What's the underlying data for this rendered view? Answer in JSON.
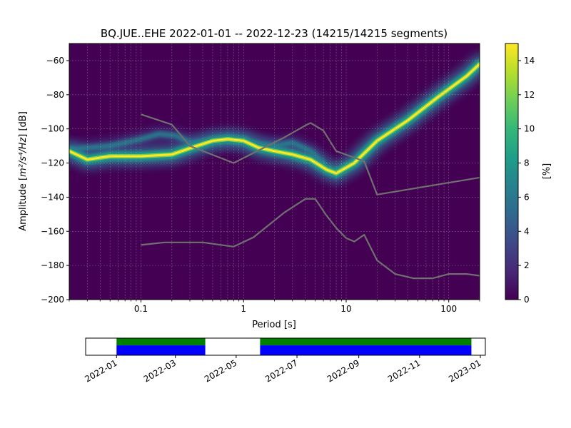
{
  "chart_data": [
    {
      "type": "heatmap",
      "title": "BQ.JUE..EHE   2022-01-01 -- 2022-12-23  (14215/14215 segments)",
      "xlabel": "Period [s]",
      "ylabel_main": "Amplitude [",
      "ylabel_unit": "m²/s⁴/Hz",
      "ylabel_tail": "] [dB]",
      "x_scale": "log",
      "xlim": [
        0.02,
        200
      ],
      "ylim": [
        -200,
        -50
      ],
      "x_ticks": [
        {
          "value": 0.1,
          "label": "0.1"
        },
        {
          "value": 1,
          "label": "1"
        },
        {
          "value": 10,
          "label": "10"
        },
        {
          "value": 100,
          "label": "100"
        }
      ],
      "y_ticks": [
        -60,
        -80,
        -100,
        -120,
        -140,
        -160,
        -180,
        -200
      ],
      "grid": true,
      "colorbar": {
        "label": "[%]",
        "min": 0,
        "max": 15,
        "ticks": [
          0,
          2,
          4,
          6,
          8,
          10,
          12,
          14
        ],
        "colormap": [
          "#440154",
          "#482878",
          "#3e4989",
          "#31688e",
          "#26828e",
          "#1f9e89",
          "#35b779",
          "#6ece58",
          "#b5de2b",
          "#fde725"
        ]
      },
      "colors": {
        "background": "#440154",
        "model_lines": "#707070",
        "grid": "#aaaaaa"
      },
      "modal_curve": [
        [
          0.02,
          -113
        ],
        [
          0.03,
          -118
        ],
        [
          0.05,
          -116
        ],
        [
          0.1,
          -116
        ],
        [
          0.2,
          -115
        ],
        [
          0.35,
          -110
        ],
        [
          0.5,
          -107
        ],
        [
          0.7,
          -106
        ],
        [
          1.0,
          -107
        ],
        [
          1.4,
          -111
        ],
        [
          2.0,
          -113
        ],
        [
          3.0,
          -115
        ],
        [
          4.5,
          -118
        ],
        [
          6.5,
          -124
        ],
        [
          8.0,
          -126
        ],
        [
          12,
          -120
        ],
        [
          20,
          -107
        ],
        [
          40,
          -95
        ],
        [
          80,
          -81
        ],
        [
          150,
          -69
        ],
        [
          200,
          -62
        ]
      ],
      "secondary_curve": [
        [
          0.02,
          -112
        ],
        [
          0.05,
          -110
        ],
        [
          0.1,
          -106
        ],
        [
          0.15,
          -103
        ],
        [
          0.22,
          -104
        ],
        [
          0.3,
          -108
        ],
        [
          0.5,
          -107
        ],
        [
          0.8,
          -106
        ],
        [
          1.2,
          -108
        ],
        [
          2.0,
          -110
        ],
        [
          3.0,
          -108
        ],
        [
          4.5,
          -113
        ],
        [
          6.0,
          -120
        ]
      ],
      "series": [
        {
          "name": "",
          "x": [
            0.1,
            0.2,
            0.3,
            0.8,
            2.5,
            4.0,
            4.5,
            6.0,
            8.0,
            15.0,
            20.0,
            200.0
          ],
          "y": [
            -91.5,
            -97.5,
            -110,
            -120,
            -105,
            -98,
            -96.5,
            -101,
            -113,
            -119,
            -138.5,
            -128.5
          ]
        },
        {
          "name": "",
          "x": [
            0.1,
            0.17,
            0.4,
            0.8,
            1.25,
            2.5,
            4.0,
            5.0,
            6.3,
            8.0,
            10.0,
            12.0,
            15.0,
            20.0,
            30.0,
            45.0,
            70.0,
            100.0,
            150.0,
            200.0
          ],
          "y": [
            -168,
            -166.5,
            -166.5,
            -169,
            -163.5,
            -149,
            -141,
            -141,
            -150,
            -158,
            -164,
            -166,
            -162,
            -177,
            -185,
            -187.5,
            -187.5,
            -185,
            -185,
            -186
          ]
        }
      ]
    },
    {
      "type": "timeline",
      "xlim": [
        "2021-12-01",
        "2023-01-06"
      ],
      "x_ticks": [
        "2022-01",
        "2022-03",
        "2022-05",
        "2022-07",
        "2022-09",
        "2022-11",
        "2023-01"
      ],
      "data_spans": [
        [
          "2022-01-01",
          "2022-03-31"
        ],
        [
          "2022-05-25",
          "2022-12-23"
        ]
      ],
      "colors": {
        "top": "#008000",
        "bottom": "#0000ff"
      }
    }
  ]
}
